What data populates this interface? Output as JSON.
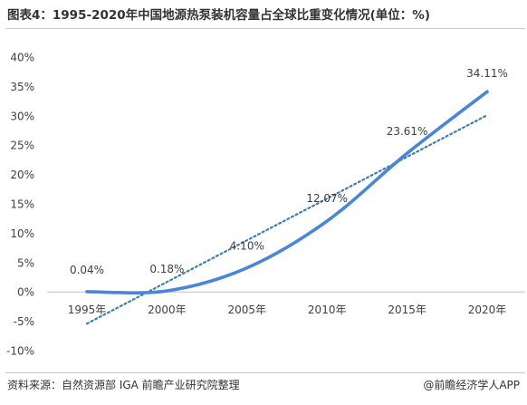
{
  "header": {
    "title": "图表4：1995-2020年中国地源热泵装机容量占全球比重变化情况(单位：%)"
  },
  "footer": {
    "source": "资料来源：自然资源部 IGA 前瞻产业研究院整理",
    "credit": "@前瞻经济学人APP"
  },
  "colors": {
    "series": "#4a86d8",
    "trend": "#3f7fb0",
    "axis_text": "#404040",
    "zero_line": "#bfbfbf"
  },
  "chart_data": {
    "type": "line",
    "categories": [
      "1995年",
      "2000年",
      "2005年",
      "2010年",
      "2015年",
      "2020年"
    ],
    "series": [
      {
        "name": "",
        "values": [
          0.04,
          0.18,
          4.1,
          12.07,
          23.61,
          34.11
        ],
        "labels": [
          "0.04%",
          "0.18%",
          "4.10%",
          "12.07%",
          "23.61%",
          "34.11%"
        ],
        "smooth": true
      }
    ],
    "trendline": {
      "type": "linear",
      "style": "dotted"
    },
    "ylim": [
      -10,
      40
    ],
    "yticks": [
      -10,
      -5,
      0,
      5,
      10,
      15,
      20,
      25,
      30,
      35,
      40
    ],
    "ytick_labels": [
      "-10%",
      "-5%",
      "0%",
      "5%",
      "10%",
      "15%",
      "20%",
      "25%",
      "30%",
      "35%",
      "40%"
    ],
    "title": "",
    "xlabel": "",
    "ylabel": "",
    "grid": false,
    "legend": "none"
  }
}
